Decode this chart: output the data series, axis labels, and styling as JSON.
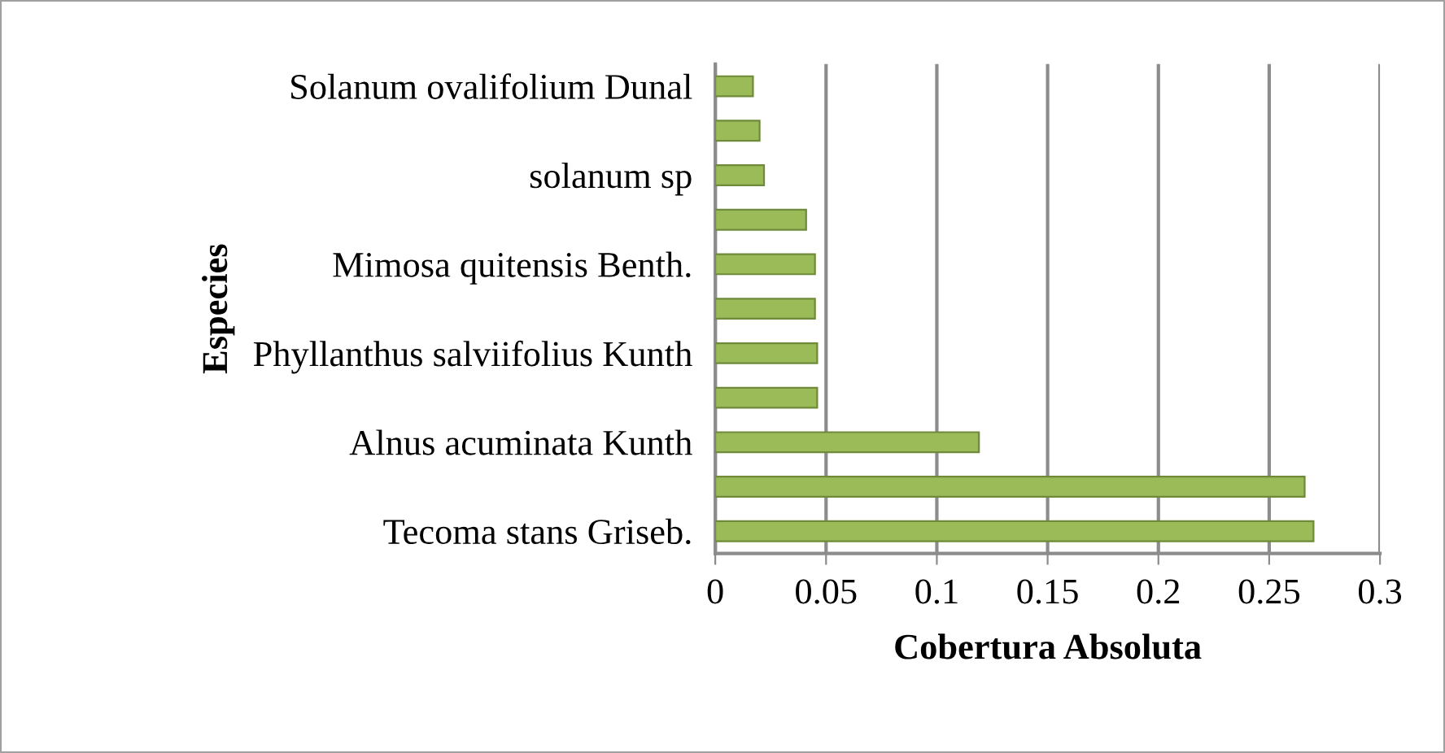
{
  "chart_data": {
    "type": "bar",
    "orientation": "horizontal",
    "xlabel": "Cobertura Absoluta",
    "ylabel": "Especies",
    "categories": [
      "Solanum ovalifolium Dunal",
      null,
      "solanum sp",
      null,
      "Mimosa quitensis Benth.",
      null,
      "Phyllanthus salviifolius Kunth",
      null,
      "Alnus acuminata Kunth",
      null,
      "Tecoma stans Griseb."
    ],
    "values": [
      0.017,
      0.02,
      0.022,
      0.041,
      0.045,
      0.045,
      0.046,
      0.046,
      0.119,
      0.266,
      0.27
    ],
    "color": "#9bbb59",
    "xlim": [
      0,
      0.3
    ],
    "xticks": [
      0,
      0.05,
      0.1,
      0.15,
      0.2,
      0.25,
      0.3
    ],
    "grid": "x"
  }
}
